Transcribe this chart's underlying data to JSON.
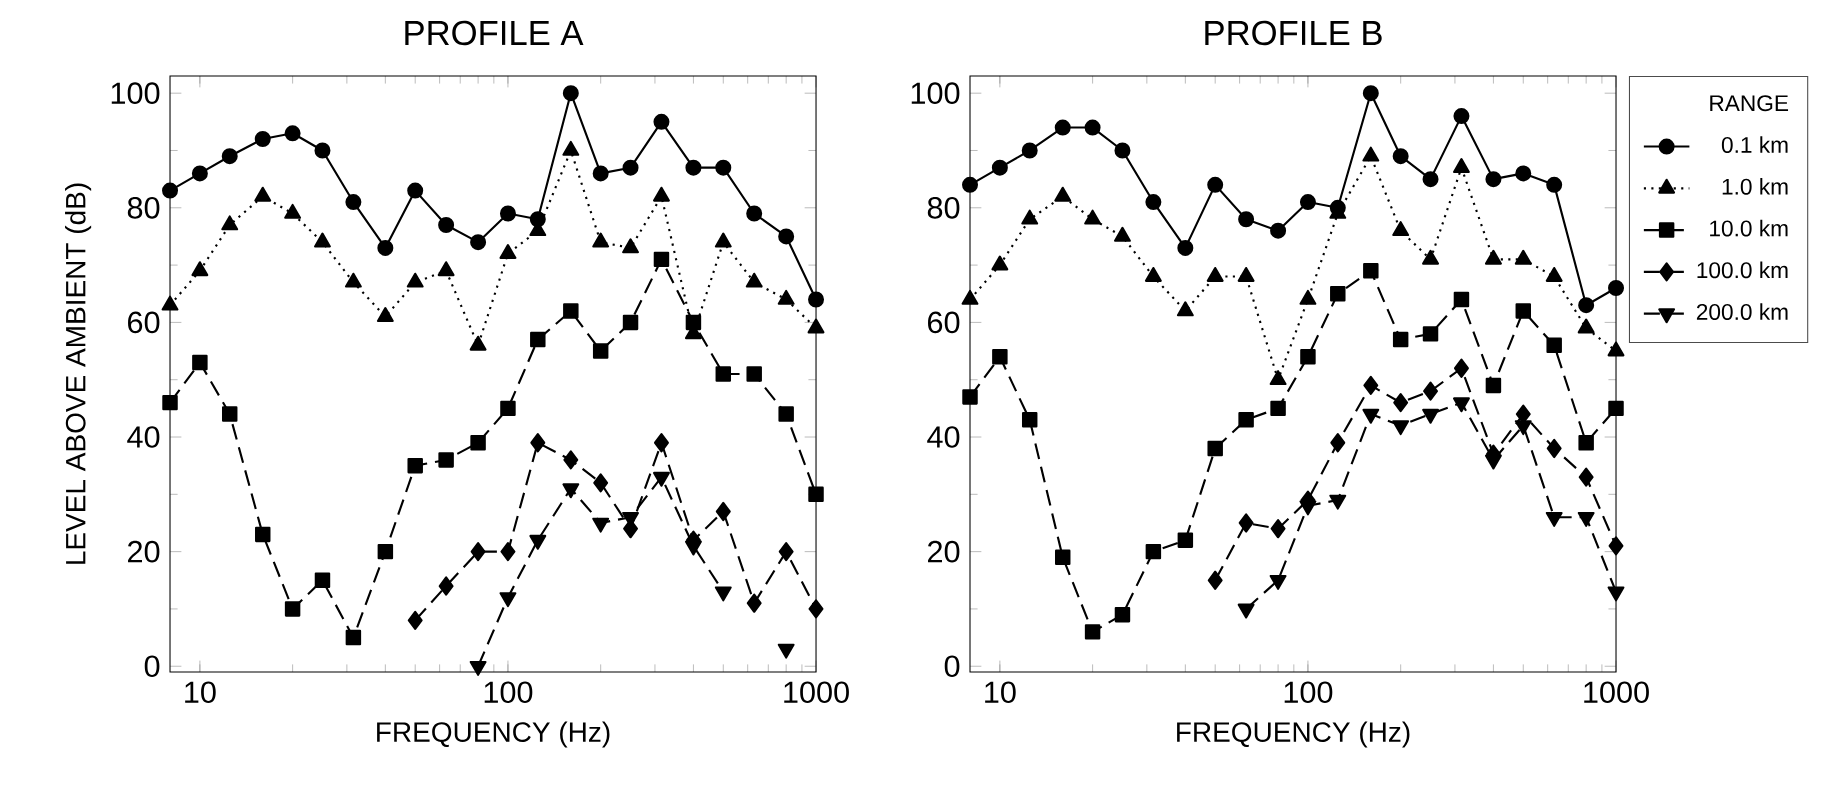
{
  "chart_data": [
    {
      "type": "line",
      "title": "PROFILE A",
      "xlabel": "FREQUENCY (Hz)",
      "ylabel": "LEVEL ABOVE AMBIENT (dB)",
      "log": "x",
      "x": [
        8,
        10,
        12.5,
        16,
        20,
        25,
        31.5,
        40,
        50,
        63,
        80,
        100,
        125,
        160,
        200,
        250,
        315,
        400,
        500,
        630,
        800,
        1000
      ],
      "xlim": [
        8,
        1000
      ],
      "xticks": [
        10,
        100,
        1000
      ],
      "ylim": [
        -1,
        103
      ],
      "yticks": [
        0,
        20,
        40,
        60,
        80,
        100
      ],
      "series": [
        {
          "color": "#000000",
          "marker": "circle",
          "line_style": "solid",
          "values": [
            83,
            86,
            89,
            92,
            93,
            90,
            81,
            73,
            83,
            77,
            74,
            79,
            78,
            100,
            86,
            87,
            95,
            87,
            87,
            79,
            75,
            64
          ]
        },
        {
          "color": "#000000",
          "marker": "triangle",
          "line_style": "dotted",
          "values": [
            63,
            69,
            77,
            82,
            79,
            74,
            67,
            61,
            67,
            69,
            56,
            72,
            76,
            90,
            74,
            73,
            82,
            58,
            74,
            67,
            64,
            59
          ]
        },
        {
          "color": "#000000",
          "marker": "square",
          "line_style": "dashed",
          "values": [
            46,
            53,
            44,
            23,
            10,
            15,
            5,
            20,
            35,
            36,
            39,
            45,
            57,
            62,
            55,
            60,
            71,
            60,
            51,
            51,
            44,
            30
          ]
        },
        {
          "color": "#000000",
          "marker": "diamond",
          "line_style": "dashed",
          "values": [
            null,
            null,
            null,
            null,
            null,
            null,
            null,
            null,
            8,
            14,
            20,
            20,
            39,
            36,
            32,
            24,
            39,
            22,
            27,
            11,
            20,
            10
          ]
        },
        {
          "color": "#000000",
          "marker": "triangle-down",
          "line_style": "dashed",
          "values": [
            null,
            null,
            null,
            null,
            null,
            null,
            null,
            null,
            null,
            null,
            0,
            12,
            22,
            31,
            25,
            26,
            33,
            21,
            13,
            null,
            3,
            null
          ]
        }
      ]
    },
    {
      "type": "line",
      "title": "PROFILE B",
      "xlabel": "FREQUENCY (Hz)",
      "log": "x",
      "legend": "right",
      "legend_title": "RANGE",
      "x": [
        8,
        10,
        12.5,
        16,
        20,
        25,
        31.5,
        40,
        50,
        63,
        80,
        100,
        125,
        160,
        200,
        250,
        315,
        400,
        500,
        630,
        800,
        1000
      ],
      "xlim": [
        8,
        1000
      ],
      "xticks": [
        10,
        100,
        1000
      ],
      "ylim": [
        -1,
        103
      ],
      "yticks": [
        0,
        20,
        40,
        60,
        80,
        100
      ],
      "series": [
        {
          "name": "0.1 km",
          "color": "#000000",
          "marker": "circle",
          "line_style": "solid",
          "values": [
            84,
            87,
            90,
            94,
            94,
            90,
            81,
            73,
            84,
            78,
            76,
            81,
            80,
            100,
            89,
            85,
            96,
            85,
            86,
            84,
            63,
            66
          ]
        },
        {
          "name": "1.0 km",
          "color": "#000000",
          "marker": "triangle",
          "line_style": "dotted",
          "values": [
            64,
            70,
            78,
            82,
            78,
            75,
            68,
            62,
            68,
            68,
            50,
            64,
            79,
            89,
            76,
            71,
            87,
            71,
            71,
            68,
            59,
            55
          ]
        },
        {
          "name": "10.0 km",
          "color": "#000000",
          "marker": "square",
          "line_style": "dashed",
          "values": [
            47,
            54,
            43,
            19,
            6,
            9,
            20,
            22,
            38,
            43,
            45,
            54,
            65,
            69,
            57,
            58,
            64,
            49,
            62,
            56,
            39,
            45
          ]
        },
        {
          "name": "100.0 km",
          "color": "#000000",
          "marker": "diamond",
          "line_style": "dashed",
          "values": [
            null,
            null,
            null,
            null,
            null,
            null,
            null,
            null,
            15,
            25,
            24,
            29,
            39,
            49,
            46,
            48,
            52,
            37,
            44,
            38,
            33,
            21
          ]
        },
        {
          "name": "200.0 km",
          "color": "#000000",
          "marker": "triangle-down",
          "line_style": "dashed",
          "values": [
            null,
            null,
            null,
            null,
            null,
            null,
            null,
            null,
            null,
            10,
            15,
            28,
            29,
            44,
            42,
            44,
            46,
            36,
            42,
            26,
            26,
            13
          ]
        }
      ]
    }
  ]
}
